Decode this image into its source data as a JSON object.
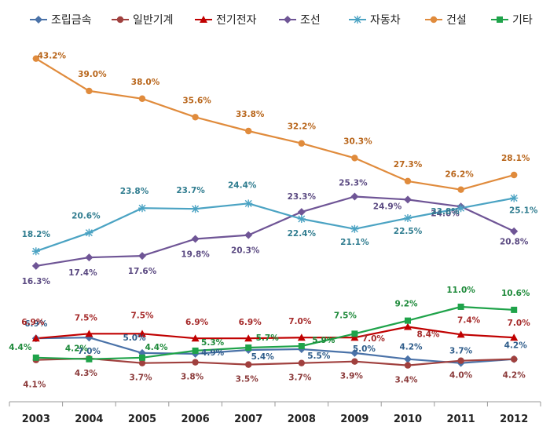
{
  "chart_data": {
    "type": "line",
    "title": "",
    "xlabel": "",
    "ylabel": "",
    "categories": [
      "2003",
      "2004",
      "2005",
      "2006",
      "2007",
      "2008",
      "2009",
      "2010",
      "2011",
      "2012"
    ],
    "ylim": [
      0,
      45
    ],
    "grid": false,
    "legend_position": "top",
    "series": [
      {
        "name": "조립금속",
        "color": "#4A72A8",
        "marker": "diamond",
        "values": [
          6.9,
          7.0,
          5.0,
          4.9,
          5.4,
          5.5,
          5.0,
          4.2,
          3.7,
          4.2
        ],
        "labels": [
          "6.9%",
          "7.0%",
          "5.0%",
          "4.9%",
          "5.4%",
          "5.5%",
          "5.0%",
          "4.2%",
          "3.7%",
          "4.2%"
        ]
      },
      {
        "name": "일반기계",
        "color": "#A0403E",
        "marker": "circle",
        "values": [
          4.1,
          4.3,
          3.7,
          3.8,
          3.5,
          3.7,
          3.9,
          3.4,
          4.0,
          4.2
        ],
        "labels": [
          "4.1%",
          "4.3%",
          "3.7%",
          "3.8%",
          "3.5%",
          "3.7%",
          "3.9%",
          "3.4%",
          "4.0%",
          "4.2%"
        ]
      },
      {
        "name": "전기전자",
        "color": "#C00000",
        "marker": "triangle",
        "values": [
          6.9,
          7.5,
          7.5,
          6.9,
          6.9,
          7.0,
          7.0,
          8.4,
          7.4,
          7.0
        ],
        "labels": [
          "6.9%",
          "7.5%",
          "7.5%",
          "6.9%",
          "6.9%",
          "7.0%",
          "7.0%",
          "8.4%",
          "7.4%",
          "7.0%"
        ]
      },
      {
        "name": "조선",
        "color": "#6F5596",
        "marker": "diamond",
        "values": [
          16.3,
          17.4,
          17.6,
          19.8,
          20.3,
          23.3,
          25.3,
          24.9,
          24.0,
          20.8
        ],
        "labels": [
          "16.3%",
          "17.4%",
          "17.6%",
          "19.8%",
          "20.3%",
          "23.3%",
          "25.3%",
          "24.9%",
          "24.0%",
          "20.8%"
        ]
      },
      {
        "name": "자동차",
        "color": "#4BA3C3",
        "marker": "star",
        "values": [
          18.2,
          20.6,
          23.8,
          23.7,
          24.4,
          22.4,
          21.1,
          22.5,
          23.8,
          25.1
        ],
        "labels": [
          "18.2%",
          "20.6%",
          "23.8%",
          "23.7%",
          "24.4%",
          "22.4%",
          "21.1%",
          "22.5%",
          "23.8%",
          "25.1%"
        ]
      },
      {
        "name": "건설",
        "color": "#E08B3C",
        "marker": "circle",
        "values": [
          43.2,
          39.0,
          38.0,
          35.6,
          33.8,
          32.2,
          30.3,
          27.3,
          26.2,
          28.1
        ],
        "labels": [
          "43.2%",
          "39.0%",
          "38.0%",
          "35.6%",
          "33.8%",
          "32.2%",
          "30.3%",
          "27.3%",
          "26.2%",
          "28.1%"
        ]
      },
      {
        "name": "기타",
        "color": "#1FA34A",
        "marker": "square",
        "values": [
          4.4,
          4.2,
          4.4,
          5.3,
          5.7,
          5.9,
          7.5,
          9.2,
          11.0,
          10.6
        ],
        "labels": [
          "4.4%",
          "4.2%",
          "4.4%",
          "5.3%",
          "5.7%",
          "5.9%",
          "7.5%",
          "9.2%",
          "11.0%",
          "10.6%"
        ]
      }
    ],
    "label_colors": {
      "조립금속": "#2E5C8A",
      "일반기계": "#8B3A3A",
      "전기전자": "#A52A2A",
      "조선": "#5B4A82",
      "자동차": "#2F7C8F",
      "건설": "#B8651A",
      "기타": "#1E8A3A"
    }
  }
}
